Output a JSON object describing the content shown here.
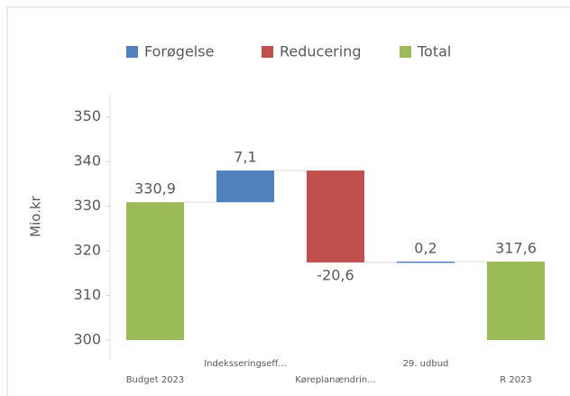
{
  "chart_data": {
    "type": "waterfall",
    "ylabel": "Mio.kr",
    "categories": [
      "Budget 2023",
      "Indeksseringseff...",
      "Køreplanændrin...",
      "29. udbud",
      "R 2023"
    ],
    "values": [
      330.9,
      7.1,
      -20.6,
      0.2,
      317.6
    ],
    "value_labels": [
      "330,9",
      "7,1",
      "-20,6",
      "0,2",
      "317,6"
    ],
    "kinds": [
      "Total",
      "Forøgelse",
      "Reducering",
      "Forøgelse",
      "Total"
    ],
    "series": [
      {
        "name": "Forøgelse",
        "color": "#4f81bd"
      },
      {
        "name": "Reducering",
        "color": "#c0504d"
      },
      {
        "name": "Total",
        "color": "#9bbb59"
      }
    ],
    "ylim": [
      300,
      355
    ],
    "yticks": [
      300,
      310,
      320,
      330,
      340,
      350
    ],
    "grid": false,
    "legend": "top"
  }
}
